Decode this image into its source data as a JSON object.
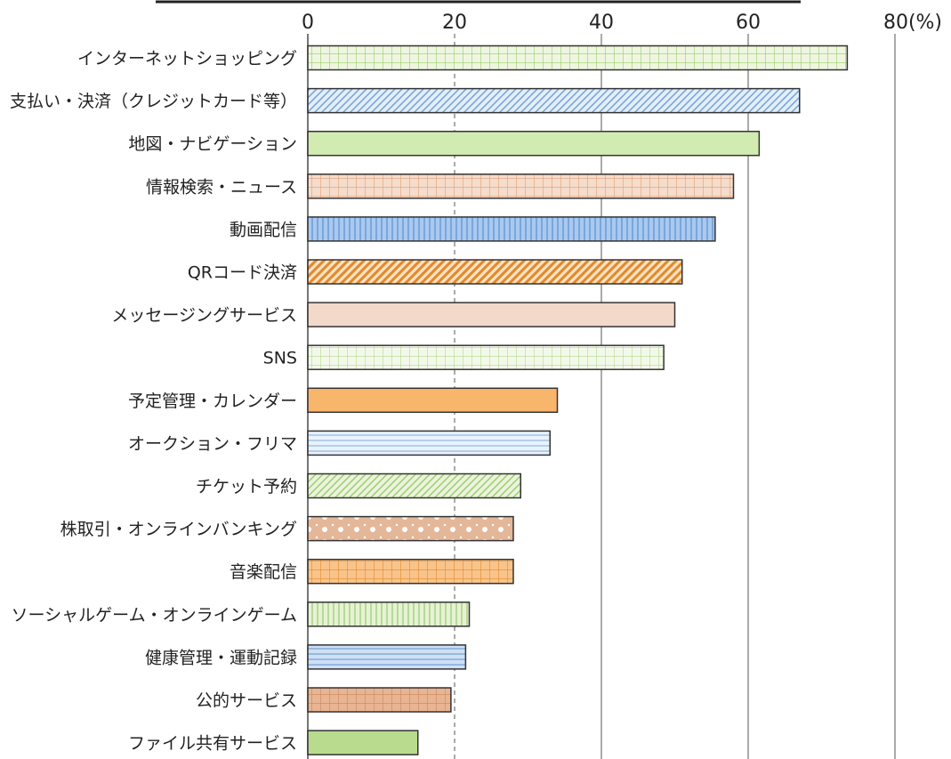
{
  "chart_data": {
    "type": "bar",
    "orientation": "horizontal",
    "categories": [
      "インターネットショッピング",
      "支払い・決済（クレジットカード等）",
      "地図・ナビゲーション",
      "情報検索・ニュース",
      "動画配信",
      "QRコード決済",
      "メッセージングサービス",
      "SNS",
      "予定管理・カレンダー",
      "オークション・フリマ",
      "チケット予約",
      "株取引・オンラインバンキング",
      "音楽配信",
      "ソーシャルゲーム・オンラインゲーム",
      "健康管理・運動記録",
      "公的サービス",
      "ファイル共有サービス"
    ],
    "values": [
      73.5,
      67,
      61.5,
      58,
      55.5,
      51,
      50,
      48.5,
      34,
      33,
      29,
      28,
      28,
      22,
      21.5,
      19.5,
      15
    ],
    "xlim": [
      0,
      80
    ],
    "ticks": [
      0,
      20,
      40,
      60
    ],
    "last_tick_label": "80(%)",
    "grid": true,
    "bar_styles": [
      {
        "fill": "#eef6e0",
        "pattern": "grid",
        "stroke": "#9acb6a"
      },
      {
        "fill": "#e3eef9",
        "pattern": "diag",
        "stroke": "#6e9fd6"
      },
      {
        "fill": "#d2ebb0",
        "pattern": "none",
        "stroke": "#9acb6a"
      },
      {
        "fill": "#f5dccb",
        "pattern": "grid",
        "stroke": "#e0a07a"
      },
      {
        "fill": "#a9c9ef",
        "pattern": "vert",
        "stroke": "#5d8fd0"
      },
      {
        "fill": "#fbe0c2",
        "pattern": "diag-bold",
        "stroke": "#e08a2a"
      },
      {
        "fill": "#f2d9c9",
        "pattern": "none",
        "stroke": "#e0b090"
      },
      {
        "fill": "#f3f9ea",
        "pattern": "grid",
        "stroke": "#b5d98c"
      },
      {
        "fill": "#f8b56c",
        "pattern": "none",
        "stroke": "#e08a2a"
      },
      {
        "fill": "#eaf3fc",
        "pattern": "horiz",
        "stroke": "#8fb7e3"
      },
      {
        "fill": "#eaf4dc",
        "pattern": "diag",
        "stroke": "#9acb6a"
      },
      {
        "fill": "#e5b799",
        "pattern": "dots",
        "stroke": "#c98a62"
      },
      {
        "fill": "#f9c48c",
        "pattern": "grid",
        "stroke": "#e08a2a"
      },
      {
        "fill": "#e6f2d6",
        "pattern": "vert",
        "stroke": "#9acb6a"
      },
      {
        "fill": "#cfe0f4",
        "pattern": "horiz",
        "stroke": "#6e9fd6"
      },
      {
        "fill": "#e8b491",
        "pattern": "grid",
        "stroke": "#c98a62"
      },
      {
        "fill": "#b9db8e",
        "pattern": "none",
        "stroke": "#86b85a"
      }
    ]
  }
}
